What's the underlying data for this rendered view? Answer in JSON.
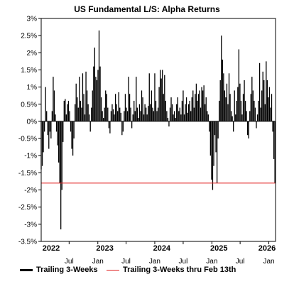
{
  "chart_data": {
    "type": "bar",
    "title": "US Fundamental L/S: Alpha Returns",
    "xlabel": "",
    "ylabel": "",
    "ylim": [
      -3.5,
      3
    ],
    "yticks": [
      "3%",
      "2.5%",
      "2%",
      "1.5%",
      "1%",
      "0.5%",
      "0%",
      "-0.5%",
      "-1%",
      "-1.5%",
      "-2%",
      "-2.5%",
      "-3%",
      "-3.5%"
    ],
    "ytick_values": [
      3,
      2.5,
      2,
      1.5,
      1,
      0.5,
      0,
      -0.5,
      -1,
      -1.5,
      -2,
      -2.5,
      -3,
      -3.5
    ],
    "x_start": "2022-01-03",
    "x_end": "2026-02-13",
    "month_ticks": [
      {
        "label": "Jan",
        "date": "2022-01-01"
      },
      {
        "label": "Jul",
        "date": "2022-07-01"
      },
      {
        "label": "Jan",
        "date": "2023-01-01"
      },
      {
        "label": "Jul",
        "date": "2023-07-01"
      },
      {
        "label": "Jan",
        "date": "2024-01-01"
      },
      {
        "label": "Jul",
        "date": "2024-07-01"
      },
      {
        "label": "Jan",
        "date": "2025-01-01"
      },
      {
        "label": "Jul",
        "date": "2025-07-01"
      },
      {
        "label": "Jan",
        "date": "2026-01-01"
      }
    ],
    "year_labels": [
      {
        "label": "2022",
        "date": "2022-03-01"
      },
      {
        "label": "2023",
        "date": "2023-02-15"
      },
      {
        "label": "2024",
        "date": "2024-02-15"
      },
      {
        "label": "2025",
        "date": "2025-02-15"
      },
      {
        "label": "2026",
        "date": "2026-02-01"
      }
    ],
    "reference_line": {
      "name": "Trailing 3-Weeks thru Feb 13th",
      "value": -1.8,
      "color": "#e02020"
    },
    "series": [
      {
        "name": "Trailing 3-Weeks",
        "color": "#000000",
        "points": [
          {
            "x": "2022-01-03",
            "y": -1.4
          },
          {
            "x": "2022-01-10",
            "y": -1.3
          },
          {
            "x": "2022-01-17",
            "y": -0.9
          },
          {
            "x": "2022-01-24",
            "y": -0.3
          },
          {
            "x": "2022-01-31",
            "y": 1.0
          },
          {
            "x": "2022-02-07",
            "y": 0.3
          },
          {
            "x": "2022-02-14",
            "y": -0.4
          },
          {
            "x": "2022-02-21",
            "y": -0.8
          },
          {
            "x": "2022-02-28",
            "y": -0.3
          },
          {
            "x": "2022-03-07",
            "y": -0.5
          },
          {
            "x": "2022-03-14",
            "y": 0.3
          },
          {
            "x": "2022-03-21",
            "y": 1.3
          },
          {
            "x": "2022-03-28",
            "y": 0.9
          },
          {
            "x": "2022-04-04",
            "y": 0.2
          },
          {
            "x": "2022-04-11",
            "y": -0.3
          },
          {
            "x": "2022-04-18",
            "y": -0.7
          },
          {
            "x": "2022-04-25",
            "y": -1.2
          },
          {
            "x": "2022-05-02",
            "y": -1.8
          },
          {
            "x": "2022-05-09",
            "y": -3.15
          },
          {
            "x": "2022-05-16",
            "y": -2.0
          },
          {
            "x": "2022-05-23",
            "y": -0.6
          },
          {
            "x": "2022-05-30",
            "y": 0.6
          },
          {
            "x": "2022-06-06",
            "y": 0.65
          },
          {
            "x": "2022-06-13",
            "y": 0.2
          },
          {
            "x": "2022-06-20",
            "y": 0.5
          },
          {
            "x": "2022-06-27",
            "y": 0.6
          },
          {
            "x": "2022-07-04",
            "y": 0.3
          },
          {
            "x": "2022-07-11",
            "y": -0.3
          },
          {
            "x": "2022-07-18",
            "y": -0.8
          },
          {
            "x": "2022-07-25",
            "y": -1.0
          },
          {
            "x": "2022-08-01",
            "y": -0.5
          },
          {
            "x": "2022-08-08",
            "y": 0.5
          },
          {
            "x": "2022-08-15",
            "y": 1.1
          },
          {
            "x": "2022-08-22",
            "y": 0.7
          },
          {
            "x": "2022-08-29",
            "y": 0.4
          },
          {
            "x": "2022-09-05",
            "y": 1.3
          },
          {
            "x": "2022-09-12",
            "y": 0.6
          },
          {
            "x": "2022-09-19",
            "y": 0.4
          },
          {
            "x": "2022-09-26",
            "y": 1.4
          },
          {
            "x": "2022-10-03",
            "y": 0.8
          },
          {
            "x": "2022-10-10",
            "y": 0.2
          },
          {
            "x": "2022-10-17",
            "y": 1.45
          },
          {
            "x": "2022-10-24",
            "y": 0.9
          },
          {
            "x": "2022-10-31",
            "y": 0.5
          },
          {
            "x": "2022-11-07",
            "y": 0.2
          },
          {
            "x": "2022-11-14",
            "y": -0.3
          },
          {
            "x": "2022-11-21",
            "y": 0.4
          },
          {
            "x": "2022-11-28",
            "y": 0.9
          },
          {
            "x": "2022-12-05",
            "y": 1.6
          },
          {
            "x": "2022-12-12",
            "y": 2.15
          },
          {
            "x": "2022-12-19",
            "y": 1.3
          },
          {
            "x": "2022-12-26",
            "y": 1.2
          },
          {
            "x": "2023-01-02",
            "y": 1.5
          },
          {
            "x": "2023-01-09",
            "y": 2.65
          },
          {
            "x": "2023-01-16",
            "y": 1.6
          },
          {
            "x": "2023-01-23",
            "y": 0.7
          },
          {
            "x": "2023-01-30",
            "y": 0.3
          },
          {
            "x": "2023-02-06",
            "y": 0.1
          },
          {
            "x": "2023-02-13",
            "y": 0.4
          },
          {
            "x": "2023-02-20",
            "y": 0.9
          },
          {
            "x": "2023-02-27",
            "y": 0.8
          },
          {
            "x": "2023-03-06",
            "y": 0.4
          },
          {
            "x": "2023-03-13",
            "y": -0.2
          },
          {
            "x": "2023-03-20",
            "y": -0.35
          },
          {
            "x": "2023-03-27",
            "y": 0.3
          },
          {
            "x": "2023-04-03",
            "y": 0.5
          },
          {
            "x": "2023-04-10",
            "y": 0.35
          },
          {
            "x": "2023-04-17",
            "y": 0.2
          },
          {
            "x": "2023-04-24",
            "y": 0.8
          },
          {
            "x": "2023-05-01",
            "y": 0.5
          },
          {
            "x": "2023-05-08",
            "y": 0.3
          },
          {
            "x": "2023-05-15",
            "y": 0.85
          },
          {
            "x": "2023-05-22",
            "y": 0.4
          },
          {
            "x": "2023-05-29",
            "y": 0.25
          },
          {
            "x": "2023-06-05",
            "y": -0.4
          },
          {
            "x": "2023-06-12",
            "y": -0.3
          },
          {
            "x": "2023-06-19",
            "y": 0.3
          },
          {
            "x": "2023-06-26",
            "y": 0.8
          },
          {
            "x": "2023-07-03",
            "y": 0.4
          },
          {
            "x": "2023-07-10",
            "y": 0.3
          },
          {
            "x": "2023-07-17",
            "y": 1.3
          },
          {
            "x": "2023-07-24",
            "y": 0.8
          },
          {
            "x": "2023-07-31",
            "y": 0.4
          },
          {
            "x": "2023-08-07",
            "y": -0.2
          },
          {
            "x": "2023-08-14",
            "y": 0.2
          },
          {
            "x": "2023-08-21",
            "y": 0.6
          },
          {
            "x": "2023-08-28",
            "y": 0.3
          },
          {
            "x": "2023-09-04",
            "y": 1.3
          },
          {
            "x": "2023-09-11",
            "y": 0.4
          },
          {
            "x": "2023-09-18",
            "y": 0.1
          },
          {
            "x": "2023-09-25",
            "y": 0.5
          },
          {
            "x": "2023-10-02",
            "y": 0.3
          },
          {
            "x": "2023-10-09",
            "y": 0.9
          },
          {
            "x": "2023-10-16",
            "y": 0.7
          },
          {
            "x": "2023-10-23",
            "y": 0.2
          },
          {
            "x": "2023-10-30",
            "y": 0.5
          },
          {
            "x": "2023-11-06",
            "y": 0.4
          },
          {
            "x": "2023-11-13",
            "y": 0.2
          },
          {
            "x": "2023-11-20",
            "y": 0.45
          },
          {
            "x": "2023-11-27",
            "y": 1.4
          },
          {
            "x": "2023-12-04",
            "y": 0.5
          },
          {
            "x": "2023-12-11",
            "y": 0.9
          },
          {
            "x": "2023-12-18",
            "y": 0.4
          },
          {
            "x": "2023-12-25",
            "y": 0.3
          },
          {
            "x": "2024-01-01",
            "y": 1.4
          },
          {
            "x": "2024-01-08",
            "y": 0.6
          },
          {
            "x": "2024-01-15",
            "y": 0.3
          },
          {
            "x": "2024-01-22",
            "y": 0.4
          },
          {
            "x": "2024-01-29",
            "y": 1.0
          },
          {
            "x": "2024-02-05",
            "y": 1.5
          },
          {
            "x": "2024-02-12",
            "y": 1.25
          },
          {
            "x": "2024-02-19",
            "y": 1.5
          },
          {
            "x": "2024-02-26",
            "y": 0.8
          },
          {
            "x": "2024-03-04",
            "y": 1.35
          },
          {
            "x": "2024-03-11",
            "y": 0.6
          },
          {
            "x": "2024-03-18",
            "y": 0.3
          },
          {
            "x": "2024-03-25",
            "y": 0.1
          },
          {
            "x": "2024-04-01",
            "y": -0.15
          },
          {
            "x": "2024-04-08",
            "y": 0.4
          },
          {
            "x": "2024-04-15",
            "y": 0.7
          },
          {
            "x": "2024-04-22",
            "y": 0.5
          },
          {
            "x": "2024-04-29",
            "y": 0.2
          },
          {
            "x": "2024-05-06",
            "y": 0.3
          },
          {
            "x": "2024-05-13",
            "y": 0.1
          },
          {
            "x": "2024-05-20",
            "y": 0.5
          },
          {
            "x": "2024-05-27",
            "y": 0.7
          },
          {
            "x": "2024-06-03",
            "y": 0.3
          },
          {
            "x": "2024-06-10",
            "y": 0.4
          },
          {
            "x": "2024-06-17",
            "y": 0.2
          },
          {
            "x": "2024-06-24",
            "y": 0.6
          },
          {
            "x": "2024-07-01",
            "y": 0.9
          },
          {
            "x": "2024-07-08",
            "y": 0.2
          },
          {
            "x": "2024-07-15",
            "y": 0.5
          },
          {
            "x": "2024-07-22",
            "y": 0.7
          },
          {
            "x": "2024-07-29",
            "y": 0.25
          },
          {
            "x": "2024-08-05",
            "y": 0.5
          },
          {
            "x": "2024-08-12",
            "y": 0.6
          },
          {
            "x": "2024-08-19",
            "y": 0.3
          },
          {
            "x": "2024-08-26",
            "y": 0.7
          },
          {
            "x": "2024-09-02",
            "y": 0.9
          },
          {
            "x": "2024-09-09",
            "y": 0.4
          },
          {
            "x": "2024-09-16",
            "y": 0.8
          },
          {
            "x": "2024-09-23",
            "y": 1.1
          },
          {
            "x": "2024-09-30",
            "y": 0.6
          },
          {
            "x": "2024-10-07",
            "y": 0.8
          },
          {
            "x": "2024-10-14",
            "y": 0.9
          },
          {
            "x": "2024-10-21",
            "y": 0.4
          },
          {
            "x": "2024-10-28",
            "y": 1.0
          },
          {
            "x": "2024-11-04",
            "y": 0.9
          },
          {
            "x": "2024-11-11",
            "y": 1.05
          },
          {
            "x": "2024-11-18",
            "y": 0.5
          },
          {
            "x": "2024-11-25",
            "y": 0.7
          },
          {
            "x": "2024-12-02",
            "y": 0.3
          },
          {
            "x": "2024-12-09",
            "y": 0.2
          },
          {
            "x": "2024-12-16",
            "y": -0.3
          },
          {
            "x": "2024-12-23",
            "y": -1.0
          },
          {
            "x": "2024-12-30",
            "y": -1.7
          },
          {
            "x": "2025-01-06",
            "y": -2.0
          },
          {
            "x": "2025-01-13",
            "y": -1.3
          },
          {
            "x": "2025-01-20",
            "y": -0.4
          },
          {
            "x": "2025-01-27",
            "y": -0.9
          },
          {
            "x": "2025-02-03",
            "y": -1.8
          },
          {
            "x": "2025-02-10",
            "y": -0.5
          },
          {
            "x": "2025-02-17",
            "y": 0.6
          },
          {
            "x": "2025-02-24",
            "y": 1.2
          },
          {
            "x": "2025-03-03",
            "y": 2.5
          },
          {
            "x": "2025-03-10",
            "y": 1.8
          },
          {
            "x": "2025-03-17",
            "y": 1.4
          },
          {
            "x": "2025-03-24",
            "y": 0.9
          },
          {
            "x": "2025-03-31",
            "y": 0.7
          },
          {
            "x": "2025-04-07",
            "y": 1.1
          },
          {
            "x": "2025-04-14",
            "y": 0.5
          },
          {
            "x": "2025-04-21",
            "y": 1.4
          },
          {
            "x": "2025-04-28",
            "y": 0.8
          },
          {
            "x": "2025-05-05",
            "y": 0.3
          },
          {
            "x": "2025-05-12",
            "y": 0.15
          },
          {
            "x": "2025-05-19",
            "y": -0.3
          },
          {
            "x": "2025-05-26",
            "y": 0.9
          },
          {
            "x": "2025-06-02",
            "y": 0.2
          },
          {
            "x": "2025-06-09",
            "y": 0.6
          },
          {
            "x": "2025-06-16",
            "y": 1.0
          },
          {
            "x": "2025-06-23",
            "y": 2.1
          },
          {
            "x": "2025-06-30",
            "y": 1.1
          },
          {
            "x": "2025-07-07",
            "y": 0.6
          },
          {
            "x": "2025-07-14",
            "y": 0.2
          },
          {
            "x": "2025-07-21",
            "y": 0.8
          },
          {
            "x": "2025-07-28",
            "y": 1.2
          },
          {
            "x": "2025-08-04",
            "y": 0.6
          },
          {
            "x": "2025-08-11",
            "y": 0.3
          },
          {
            "x": "2025-08-18",
            "y": -0.4
          },
          {
            "x": "2025-08-25",
            "y": -0.5
          },
          {
            "x": "2025-09-01",
            "y": 0.3
          },
          {
            "x": "2025-09-08",
            "y": 0.8
          },
          {
            "x": "2025-09-15",
            "y": 1.3
          },
          {
            "x": "2025-09-22",
            "y": 0.9
          },
          {
            "x": "2025-09-29",
            "y": 0.6
          },
          {
            "x": "2025-10-06",
            "y": 0.4
          },
          {
            "x": "2025-10-13",
            "y": -0.2
          },
          {
            "x": "2025-10-20",
            "y": 0.2
          },
          {
            "x": "2025-10-27",
            "y": 0.6
          },
          {
            "x": "2025-11-03",
            "y": 1.7
          },
          {
            "x": "2025-11-10",
            "y": 0.4
          },
          {
            "x": "2025-11-17",
            "y": 0.9
          },
          {
            "x": "2025-11-24",
            "y": 1.45
          },
          {
            "x": "2025-12-01",
            "y": 1.2
          },
          {
            "x": "2025-12-08",
            "y": 0.5
          },
          {
            "x": "2025-12-15",
            "y": 1.75
          },
          {
            "x": "2025-12-22",
            "y": 1.2
          },
          {
            "x": "2025-12-29",
            "y": 0.7
          },
          {
            "x": "2026-01-05",
            "y": 1.0
          },
          {
            "x": "2026-01-12",
            "y": 0.4
          },
          {
            "x": "2026-01-19",
            "y": 0.8
          },
          {
            "x": "2026-01-26",
            "y": -0.3
          },
          {
            "x": "2026-02-02",
            "y": -1.1
          },
          {
            "x": "2026-02-09",
            "y": -1.8
          }
        ]
      }
    ]
  }
}
